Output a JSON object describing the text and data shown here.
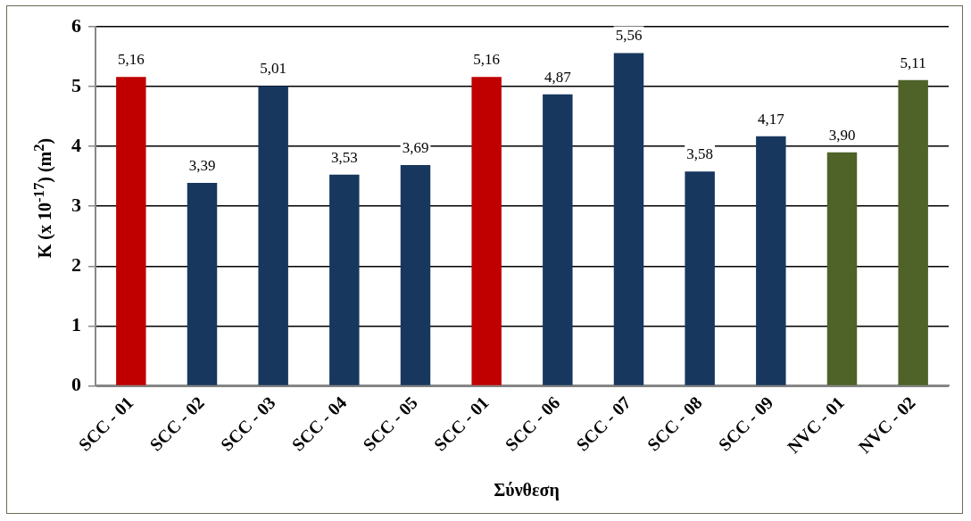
{
  "chart_data": {
    "type": "bar",
    "xlabel": "Σύνθεση",
    "ylabel": "K (x 10$^{-17}$)  (m$^{2}$)",
    "categories": [
      "SCC - 01",
      "SCC - 02",
      "SCC - 03",
      "SCC - 04",
      "SCC - 05",
      "SCC - 01",
      "SCC - 06",
      "SCC - 07",
      "SCC - 08",
      "SCC - 09",
      "NVC - 01",
      "NVC - 02"
    ],
    "values": [
      5.16,
      3.39,
      5.01,
      3.53,
      3.69,
      5.16,
      4.87,
      5.56,
      3.58,
      4.17,
      3.9,
      5.11
    ],
    "value_labels": [
      "5,16",
      "3,39",
      "5,01",
      "3,53",
      "3,69",
      "5,16",
      "4,87",
      "5,56",
      "3,58",
      "4,17",
      "3,90",
      "5,11"
    ],
    "colors": [
      "#c00000",
      "#17375e",
      "#17375e",
      "#17375e",
      "#17375e",
      "#c00000",
      "#17375e",
      "#17375e",
      "#17375e",
      "#17375e",
      "#4f6228",
      "#4f6228"
    ],
    "ylim": [
      0,
      6
    ],
    "yticks": [
      0,
      1,
      2,
      3,
      4,
      5,
      6
    ],
    "grid": "y",
    "legend": false
  }
}
